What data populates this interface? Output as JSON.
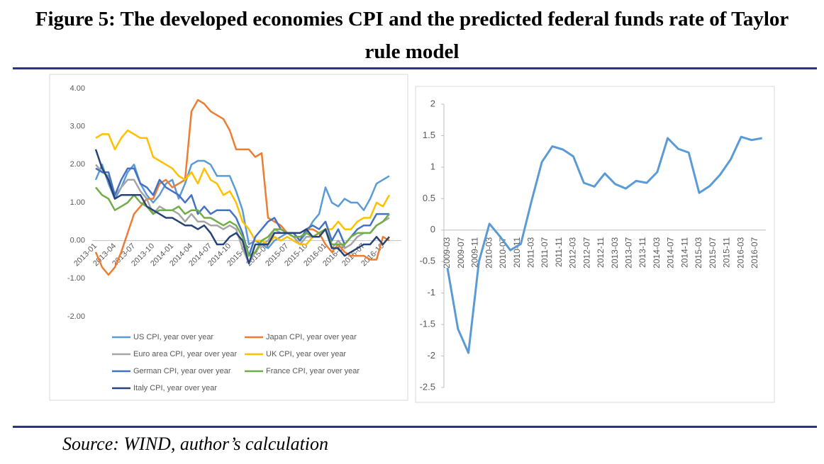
{
  "title": "Figure 5:  The developed economies CPI and the predicted federal funds rate of Taylor rule model",
  "source": "Source: WIND, author’s calculation",
  "chart_data": [
    {
      "type": "line",
      "categories": [
        "2013-01",
        null,
        null,
        "2013-04",
        null,
        null,
        "2013-07",
        null,
        null,
        "2013-10",
        null,
        null,
        "2014-01",
        null,
        null,
        "2014-04",
        null,
        null,
        "2014-07",
        null,
        null,
        "2014-10",
        null,
        null,
        "2015-01",
        null,
        null,
        "2015-04",
        null,
        null,
        "2015-07",
        null,
        null,
        "2015-10",
        null,
        null,
        "2016-01",
        null,
        null,
        "2016-04",
        null,
        null,
        "2016-07",
        null,
        null,
        "2016-10",
        null
      ],
      "series": [
        {
          "name": "US CPI, year over year",
          "color": "#5b9bd5",
          "values": [
            1.6,
            2.0,
            1.5,
            1.1,
            1.4,
            1.8,
            2.0,
            1.5,
            1.2,
            1.0,
            1.2,
            1.5,
            1.6,
            1.1,
            1.5,
            2.0,
            2.1,
            2.1,
            2.0,
            1.7,
            1.7,
            1.7,
            1.3,
            0.8,
            -0.1,
            0.0,
            -0.1,
            -0.2,
            0.0,
            0.1,
            0.2,
            0.2,
            0.0,
            0.2,
            0.5,
            0.7,
            1.4,
            1.0,
            0.9,
            1.1,
            1.0,
            1.0,
            0.8,
            1.1,
            1.5,
            1.6,
            1.7
          ]
        },
        {
          "name": "Japan CPI, year over year",
          "color": "#ed7d31",
          "values": [
            -0.3,
            -0.7,
            -0.9,
            -0.7,
            -0.3,
            0.2,
            0.7,
            0.9,
            1.1,
            1.1,
            1.5,
            1.6,
            1.4,
            1.5,
            1.6,
            3.4,
            3.7,
            3.6,
            3.4,
            3.3,
            3.2,
            2.9,
            2.4,
            2.4,
            2.4,
            2.2,
            2.3,
            0.6,
            0.5,
            0.4,
            0.2,
            0.2,
            0.0,
            0.3,
            0.3,
            0.2,
            -0.1,
            -0.3,
            -0.1,
            -0.3,
            -0.4,
            -0.4,
            -0.4,
            -0.5,
            -0.5,
            0.1,
            0.0
          ]
        },
        {
          "name": "Euro area CPI, year over year",
          "color": "#a5a5a5",
          "values": [
            2.0,
            1.8,
            1.7,
            1.2,
            1.4,
            1.6,
            1.6,
            1.3,
            1.1,
            0.7,
            0.9,
            0.8,
            0.8,
            0.7,
            0.5,
            0.7,
            0.5,
            0.5,
            0.4,
            0.4,
            0.3,
            0.4,
            0.3,
            -0.2,
            -0.6,
            -0.3,
            -0.1,
            0.0,
            0.3,
            0.2,
            0.2,
            0.1,
            -0.1,
            0.1,
            0.1,
            0.2,
            0.3,
            -0.2,
            0.0,
            -0.2,
            -0.1,
            0.1,
            0.2,
            0.2,
            0.4,
            0.5,
            0.6
          ]
        },
        {
          "name": "UK CPI, year over year",
          "color": "#ffc000",
          "values": [
            2.7,
            2.8,
            2.8,
            2.4,
            2.7,
            2.9,
            2.8,
            2.7,
            2.7,
            2.2,
            2.1,
            2.0,
            1.9,
            1.7,
            1.6,
            1.8,
            1.5,
            1.9,
            1.6,
            1.5,
            1.2,
            1.3,
            1.0,
            0.5,
            0.3,
            0.0,
            0.0,
            -0.1,
            0.1,
            0.0,
            0.1,
            0.0,
            -0.1,
            -0.1,
            0.1,
            0.2,
            0.3,
            0.3,
            0.5,
            0.3,
            0.3,
            0.5,
            0.6,
            0.6,
            1.0,
            0.9,
            1.2
          ]
        },
        {
          "name": "German CPI, year over year",
          "color": "#4472c4",
          "values": [
            1.9,
            1.8,
            1.8,
            1.2,
            1.6,
            1.9,
            1.9,
            1.5,
            1.4,
            1.2,
            1.6,
            1.4,
            1.3,
            1.2,
            1.0,
            1.2,
            0.7,
            0.9,
            0.7,
            0.8,
            0.8,
            0.8,
            0.6,
            0.2,
            -0.4,
            0.1,
            0.3,
            0.5,
            0.6,
            0.3,
            0.2,
            0.2,
            0.0,
            0.3,
            0.4,
            0.3,
            0.5,
            0.0,
            0.3,
            -0.1,
            0.1,
            0.3,
            0.4,
            0.4,
            0.7,
            0.7,
            0.7
          ]
        },
        {
          "name": "France CPI, year over year",
          "color": "#70ad47",
          "values": [
            1.4,
            1.2,
            1.1,
            0.8,
            0.9,
            1.0,
            1.2,
            1.0,
            0.9,
            0.7,
            0.8,
            0.8,
            0.8,
            0.9,
            0.7,
            0.8,
            0.8,
            0.6,
            0.6,
            0.5,
            0.4,
            0.5,
            0.4,
            0.1,
            -0.4,
            -0.3,
            0.0,
            0.1,
            0.3,
            0.3,
            0.2,
            0.1,
            0.1,
            0.2,
            0.1,
            0.2,
            0.3,
            -0.1,
            -0.1,
            -0.1,
            0.1,
            0.2,
            0.2,
            0.2,
            0.4,
            0.5,
            0.7
          ]
        },
        {
          "name": "Italy CPI, year over year",
          "color": "#264478",
          "values": [
            2.4,
            1.9,
            1.6,
            1.1,
            1.2,
            1.2,
            1.2,
            1.2,
            0.9,
            0.8,
            0.7,
            0.6,
            0.6,
            0.5,
            0.4,
            0.4,
            0.3,
            0.4,
            0.2,
            -0.1,
            -0.1,
            0.1,
            0.2,
            0.0,
            -0.6,
            -0.1,
            -0.1,
            -0.1,
            0.2,
            0.2,
            0.2,
            0.2,
            0.2,
            0.3,
            0.1,
            0.1,
            0.3,
            -0.2,
            -0.2,
            -0.4,
            -0.3,
            -0.2,
            -0.1,
            -0.1,
            0.1,
            -0.1,
            0.1
          ]
        }
      ],
      "ylim": [
        -2,
        4
      ],
      "yticks": [
        {
          "value": -2,
          "label": "-2.00"
        },
        {
          "value": -1,
          "label": "-1.00"
        },
        {
          "value": 0,
          "label": "0.00"
        },
        {
          "value": 1,
          "label": "1.00"
        },
        {
          "value": 2,
          "label": "2.00"
        },
        {
          "value": 3,
          "label": "3.00"
        },
        {
          "value": 4,
          "label": "4.00"
        }
      ],
      "legend": "bottom"
    },
    {
      "type": "line",
      "x": [
        "2009-03",
        "2009-06",
        "2009-09",
        "2009-12",
        "2010-03",
        "2010-06",
        "2010-09",
        "2010-12",
        "2011-03",
        "2011-06",
        "2011-09",
        "2011-12",
        "2012-03",
        "2012-06",
        "2012-09",
        "2012-12",
        "2013-03",
        "2013-06",
        "2013-09",
        "2013-12",
        "2014-03",
        "2014-06",
        "2014-09",
        "2014-12",
        "2015-03",
        "2015-06",
        "2015-09",
        "2015-12",
        "2016-03",
        "2016-06",
        "2016-09"
      ],
      "values": [
        -0.6,
        -1.57,
        -1.95,
        -0.5,
        0.1,
        -0.1,
        -0.32,
        -0.22,
        0.45,
        1.08,
        1.33,
        1.28,
        1.17,
        0.75,
        0.69,
        0.9,
        0.73,
        0.66,
        0.78,
        0.75,
        0.92,
        1.46,
        1.29,
        1.23,
        0.59,
        0.7,
        0.88,
        1.12,
        1.48,
        1.43,
        1.46
      ],
      "color": "#5b9bd5",
      "xticks": [
        "2009-03",
        "2009-07",
        "2009-11",
        "2010-03",
        "2010-07",
        "2010-11",
        "2011-03",
        "2011-07",
        "2011-11",
        "2012-03",
        "2012-07",
        "2012-11",
        "2013-03",
        "2013-07",
        "2013-11",
        "2014-03",
        "2014-07",
        "2014-11",
        "2015-03",
        "2015-07",
        "2015-11",
        "2016-03",
        "2016-07"
      ],
      "ylim": [
        -2.5,
        2
      ],
      "yticks": [
        -2.5,
        -2,
        -1.5,
        -1,
        -0.5,
        0,
        0.5,
        1,
        1.5,
        2
      ]
    }
  ]
}
